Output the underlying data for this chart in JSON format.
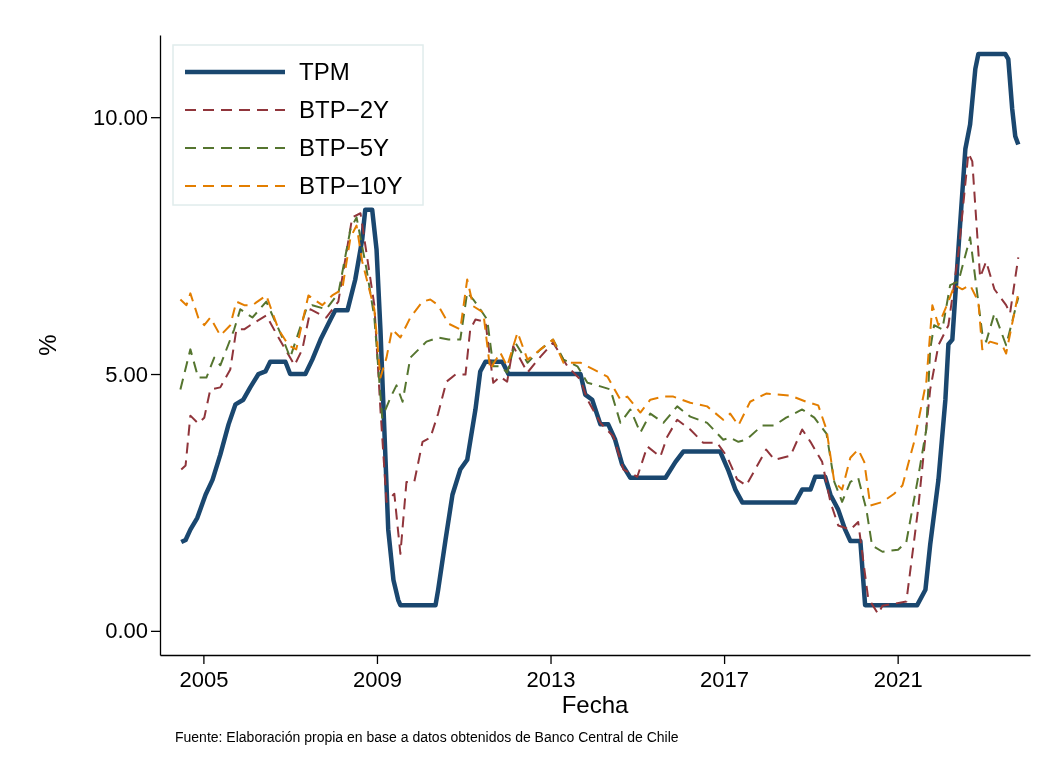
{
  "chart_data": {
    "type": "line",
    "xlabel": "Fecha",
    "ylabel": "%",
    "annotations": [
      "Fuente: Elaboración propia en base a datos obtenidos de Banco Central de Chile"
    ],
    "xlim": [
      2004.0,
      2024.05
    ],
    "ylim": [
      -0.47,
      11.6
    ],
    "xticks": [
      2005,
      2009,
      2013,
      2017,
      2021
    ],
    "yticks": [
      {
        "value": 0,
        "label": "0.00"
      },
      {
        "value": 5,
        "label": "5.00"
      },
      {
        "value": 10,
        "label": "10.00"
      }
    ],
    "grid": false,
    "legend": "top left",
    "marker": "none",
    "series": [
      {
        "name": "TPM",
        "color": "#1a476f",
        "line_style": "solid",
        "x": [
          2004.49,
          2004.59,
          2004.7,
          2004.86,
          2005.05,
          2005.21,
          2005.39,
          2005.58,
          2005.74,
          2005.92,
          2006.08,
          2006.27,
          2006.43,
          2006.54,
          2006.89,
          2007.0,
          2007.35,
          2007.51,
          2007.7,
          2007.93,
          2008.04,
          2008.32,
          2008.5,
          2008.66,
          2008.73,
          2008.89,
          2008.99,
          2009.08,
          2009.17,
          2009.26,
          2009.38,
          2009.49,
          2009.54,
          2010.35,
          2010.41,
          2010.58,
          2010.74,
          2010.92,
          2011.08,
          2011.27,
          2011.38,
          2011.5,
          2011.89,
          2012.03,
          2013.69,
          2013.8,
          2013.96,
          2014.15,
          2014.33,
          2014.49,
          2014.65,
          2014.84,
          2015.65,
          2015.88,
          2016.06,
          2016.91,
          2017.09,
          2017.26,
          2017.42,
          2018.64,
          2018.8,
          2018.99,
          2019.1,
          2019.33,
          2019.45,
          2019.63,
          2019.79,
          2019.91,
          2020.14,
          2020.25,
          2021.45,
          2021.64,
          2021.75,
          2021.94,
          2022.1,
          2022.17,
          2022.26,
          2022.4,
          2022.56,
          2022.67,
          2022.79,
          2022.86,
          2023.48,
          2023.55,
          2023.64,
          2023.71,
          2023.78
        ],
        "values": [
          1.73,
          1.77,
          1.97,
          2.2,
          2.65,
          2.94,
          3.43,
          4.02,
          4.41,
          4.5,
          4.74,
          5.0,
          5.05,
          5.24,
          5.24,
          5.0,
          5.0,
          5.28,
          5.67,
          6.06,
          6.24,
          6.24,
          6.84,
          7.62,
          8.2,
          8.2,
          7.43,
          5.87,
          3.92,
          1.97,
          0.99,
          0.6,
          0.5,
          0.5,
          0.8,
          1.77,
          2.65,
          3.14,
          3.33,
          4.31,
          5.05,
          5.24,
          5.24,
          5.0,
          5.0,
          4.6,
          4.5,
          4.02,
          4.02,
          3.72,
          3.24,
          2.98,
          2.98,
          3.29,
          3.49,
          3.49,
          3.14,
          2.75,
          2.5,
          2.5,
          2.75,
          2.75,
          3.0,
          3.0,
          2.65,
          2.36,
          1.97,
          1.75,
          1.75,
          0.5,
          0.5,
          0.8,
          1.68,
          2.94,
          4.5,
          5.58,
          5.67,
          7.43,
          9.38,
          9.86,
          10.94,
          11.23,
          11.23,
          11.13,
          10.16,
          9.63,
          9.47
        ]
      },
      {
        "name": "BTP−2Y",
        "color": "#90353b",
        "line_style": "dashed",
        "x": [
          2004.49,
          2004.59,
          2004.7,
          2004.88,
          2005.02,
          2005.16,
          2005.39,
          2005.62,
          2005.76,
          2005.94,
          2006.08,
          2006.45,
          2006.73,
          2007.1,
          2007.28,
          2007.47,
          2007.83,
          2008.11,
          2008.43,
          2008.62,
          2008.94,
          2009.08,
          2009.22,
          2009.4,
          2009.54,
          2009.68,
          2009.86,
          2010.05,
          2010.23,
          2010.41,
          2010.6,
          2010.81,
          2011.04,
          2011.15,
          2011.27,
          2011.5,
          2011.68,
          2011.84,
          2012.0,
          2012.14,
          2012.47,
          2012.77,
          2013.06,
          2013.39,
          2013.69,
          2013.85,
          2014.15,
          2014.45,
          2014.68,
          2015.0,
          2015.23,
          2015.53,
          2015.69,
          2015.92,
          2016.22,
          2016.52,
          2016.84,
          2017.07,
          2017.3,
          2017.51,
          2017.97,
          2018.16,
          2018.53,
          2018.8,
          2018.99,
          2019.26,
          2019.45,
          2019.63,
          2019.91,
          2020.09,
          2020.32,
          2020.55,
          2020.65,
          2021.2,
          2021.47,
          2021.75,
          2021.94,
          2022.17,
          2022.4,
          2022.63,
          2022.72,
          2022.9,
          2023.04,
          2023.23,
          2023.5,
          2023.59,
          2023.78
        ],
        "values": [
          3.14,
          3.22,
          4.19,
          4.04,
          4.15,
          4.7,
          4.74,
          5.09,
          5.87,
          5.87,
          5.95,
          6.14,
          5.71,
          5.17,
          5.48,
          6.26,
          6.1,
          6.41,
          8.05,
          8.13,
          6.34,
          4.31,
          2.51,
          2.67,
          1.5,
          2.9,
          2.9,
          3.68,
          3.76,
          4.23,
          4.85,
          4.99,
          4.99,
          5.87,
          6.06,
          6.02,
          4.83,
          4.95,
          4.85,
          5.54,
          5.03,
          5.34,
          5.61,
          5.15,
          4.89,
          4.5,
          4.05,
          3.78,
          3.14,
          3.0,
          3.59,
          3.39,
          3.78,
          4.11,
          3.92,
          3.66,
          3.66,
          3.39,
          2.95,
          2.83,
          3.53,
          3.33,
          3.41,
          3.92,
          3.68,
          3.29,
          2.51,
          2.05,
          1.97,
          2.12,
          0.64,
          0.33,
          0.49,
          0.57,
          2.36,
          4.7,
          5.56,
          5.95,
          7.35,
          9.3,
          9.14,
          6.88,
          7.19,
          6.65,
          6.34,
          6.18,
          7.27
        ]
      },
      {
        "name": "BTP−5Y",
        "color": "#55752f",
        "line_style": "dashed",
        "x": [
          2004.47,
          2004.7,
          2004.88,
          2005.07,
          2005.25,
          2005.39,
          2005.71,
          2005.85,
          2006.13,
          2006.45,
          2006.82,
          2007.0,
          2007.37,
          2007.51,
          2007.83,
          2008.11,
          2008.39,
          2008.53,
          2008.76,
          2008.94,
          2009.12,
          2009.31,
          2009.45,
          2009.59,
          2009.77,
          2010.14,
          2010.41,
          2010.65,
          2010.92,
          2011.08,
          2011.22,
          2011.38,
          2011.54,
          2011.68,
          2011.84,
          2012.0,
          2012.19,
          2012.47,
          2012.77,
          2013.06,
          2013.3,
          2013.62,
          2013.85,
          2014.15,
          2014.38,
          2014.61,
          2014.84,
          2015.07,
          2015.3,
          2015.6,
          2015.92,
          2016.22,
          2016.61,
          2016.98,
          2017.14,
          2017.33,
          2017.51,
          2017.88,
          2018.16,
          2018.43,
          2018.8,
          2019.08,
          2019.36,
          2019.54,
          2019.72,
          2019.91,
          2020.09,
          2020.28,
          2020.41,
          2020.65,
          2021.01,
          2021.2,
          2021.47,
          2021.66,
          2021.75,
          2021.84,
          2022.03,
          2022.21,
          2022.4,
          2022.67,
          2022.95,
          2023.04,
          2023.23,
          2023.5,
          2023.78
        ],
        "values": [
          4.7,
          5.48,
          4.93,
          4.93,
          5.32,
          5.17,
          5.87,
          6.26,
          6.1,
          6.41,
          5.71,
          5.32,
          6.26,
          6.34,
          6.26,
          6.57,
          7.82,
          8.05,
          7.04,
          6.1,
          4.15,
          4.54,
          4.78,
          4.46,
          5.32,
          5.63,
          5.71,
          5.67,
          5.67,
          6.59,
          6.45,
          6.26,
          6.06,
          5.15,
          5.15,
          5.03,
          5.61,
          5.22,
          5.48,
          5.67,
          5.28,
          5.15,
          4.83,
          4.76,
          4.7,
          4.05,
          4.31,
          3.86,
          4.23,
          4.05,
          4.37,
          4.17,
          4.05,
          3.72,
          3.76,
          3.68,
          3.72,
          4.0,
          4.0,
          4.15,
          4.31,
          4.15,
          3.84,
          2.9,
          2.51,
          2.9,
          2.98,
          2.36,
          1.66,
          1.54,
          1.58,
          1.73,
          2.98,
          3.92,
          5.48,
          5.95,
          5.87,
          6.73,
          6.8,
          7.66,
          5.79,
          5.63,
          6.18,
          5.56,
          6.49
        ]
      },
      {
        "name": "BTP−10Y",
        "color": "#e37e00",
        "line_style": "dashed",
        "x": [
          2004.47,
          2004.61,
          2004.7,
          2004.88,
          2005.02,
          2005.16,
          2005.39,
          2005.62,
          2005.76,
          2005.94,
          2006.13,
          2006.45,
          2006.73,
          2006.96,
          2007.14,
          2007.42,
          2007.74,
          2007.97,
          2008.2,
          2008.39,
          2008.53,
          2008.66,
          2008.94,
          2009.08,
          2009.22,
          2009.35,
          2009.54,
          2009.77,
          2010.05,
          2010.23,
          2010.41,
          2010.65,
          2010.92,
          2011.08,
          2011.22,
          2011.45,
          2011.61,
          2011.84,
          2012.0,
          2012.24,
          2012.47,
          2012.77,
          2013.06,
          2013.3,
          2013.69,
          2013.99,
          2014.31,
          2014.61,
          2014.77,
          2015.07,
          2015.3,
          2015.6,
          2015.83,
          2016.22,
          2016.61,
          2016.98,
          2017.14,
          2017.33,
          2017.6,
          2017.97,
          2018.53,
          2018.89,
          2019.17,
          2019.36,
          2019.54,
          2019.72,
          2019.91,
          2020.09,
          2020.23,
          2020.37,
          2020.65,
          2020.92,
          2021.11,
          2021.38,
          2021.66,
          2021.8,
          2021.94,
          2022.17,
          2022.31,
          2022.49,
          2022.67,
          2022.86,
          2022.95,
          2023.13,
          2023.41,
          2023.5,
          2023.78
        ],
        "values": [
          6.45,
          6.34,
          6.57,
          6.1,
          5.95,
          6.1,
          5.75,
          5.95,
          6.41,
          6.34,
          6.34,
          6.53,
          5.87,
          5.56,
          5.48,
          6.53,
          6.34,
          6.53,
          6.65,
          7.66,
          7.89,
          7.19,
          6.26,
          4.93,
          5.32,
          5.87,
          5.71,
          6.1,
          6.41,
          6.45,
          6.34,
          5.98,
          5.87,
          6.84,
          6.32,
          6.2,
          5.09,
          5.42,
          5.15,
          5.81,
          5.28,
          5.48,
          5.67,
          5.22,
          5.22,
          5.09,
          4.95,
          4.5,
          4.56,
          4.25,
          4.5,
          4.56,
          4.56,
          4.44,
          4.37,
          4.11,
          4.23,
          4.0,
          4.46,
          4.62,
          4.58,
          4.46,
          4.39,
          3.92,
          2.9,
          2.75,
          3.37,
          3.53,
          3.29,
          2.44,
          2.51,
          2.67,
          2.83,
          3.68,
          4.85,
          6.34,
          5.95,
          6.41,
          6.73,
          6.65,
          6.73,
          6.41,
          5.48,
          5.63,
          5.56,
          5.4,
          6.57
        ]
      }
    ]
  }
}
